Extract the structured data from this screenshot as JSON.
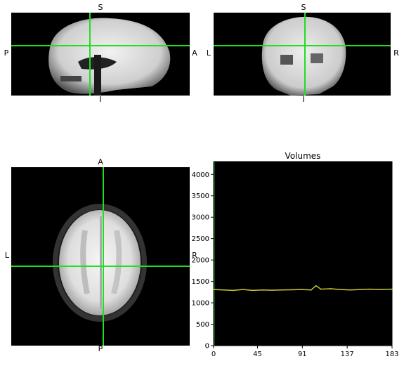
{
  "views": {
    "sagittal": {
      "top": "S",
      "bottom": "I",
      "left": "P",
      "right": "A"
    },
    "coronal": {
      "top": "S",
      "bottom": "I",
      "left": "L",
      "right": "R"
    },
    "axial": {
      "top": "A",
      "bottom": "P",
      "left": "L",
      "right": "R"
    }
  },
  "colors": {
    "crosshair": "#22dd22",
    "trace": "#c8c832",
    "background": "#000000"
  },
  "chart_data": {
    "type": "line",
    "title": "Volumes",
    "xlabel": "",
    "ylabel": "",
    "xlim": [
      0,
      183
    ],
    "ylim": [
      0,
      4300
    ],
    "x_ticks": [
      0,
      45,
      91,
      137,
      183
    ],
    "y_ticks": [
      0,
      500,
      1000,
      1500,
      2000,
      2500,
      3000,
      3500,
      4000
    ],
    "series": [
      {
        "x": [
          0,
          10,
          20,
          30,
          40,
          50,
          60,
          70,
          80,
          90,
          100,
          105,
          110,
          120,
          130,
          140,
          150,
          160,
          170,
          183
        ],
        "values": [
          1310,
          1300,
          1290,
          1310,
          1290,
          1300,
          1295,
          1300,
          1305,
          1310,
          1300,
          1400,
          1320,
          1330,
          1310,
          1300,
          1310,
          1320,
          1310,
          1320
        ]
      }
    ],
    "grid": false
  }
}
